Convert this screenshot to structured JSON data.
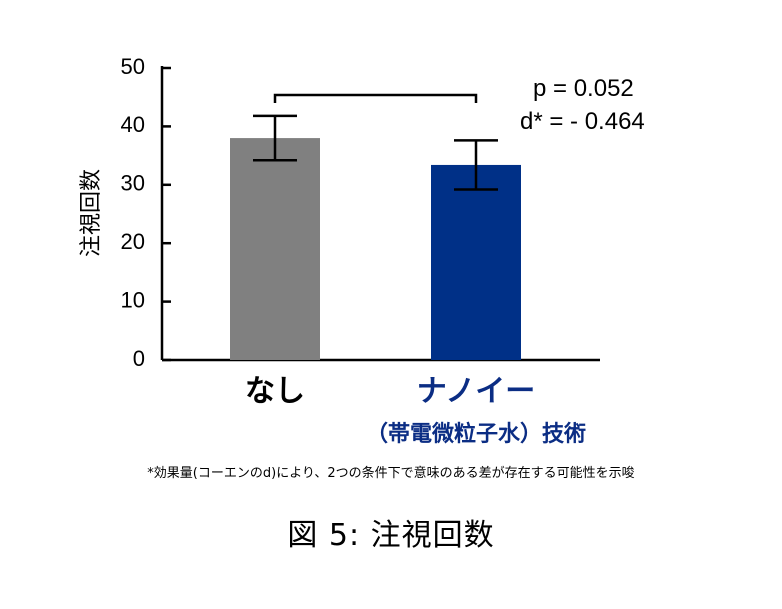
{
  "chart_data": {
    "type": "bar",
    "categories": [
      "なし",
      "ナノイー"
    ],
    "category_sublabels": [
      "",
      "（帯電微粒子水）技術"
    ],
    "values": [
      38,
      33.4
    ],
    "error": [
      3.8,
      4.2
    ],
    "bar_colors": [
      "#808080",
      "#003087"
    ],
    "label_colors": [
      "#000000",
      "#0b2d84"
    ],
    "ylabel": "注視回数",
    "ylim": [
      0,
      50
    ],
    "yticks": [
      0,
      10,
      20,
      30,
      40,
      50
    ],
    "grid": false,
    "comparison": {
      "p_text": "p = 0.052",
      "d_text": "d* = - 0.464"
    }
  },
  "footnote": "*効果量(コーエンのd)により、2つの条件下で意味のある差が存在する可能性を示唆",
  "caption": "図 5: 注視回数"
}
